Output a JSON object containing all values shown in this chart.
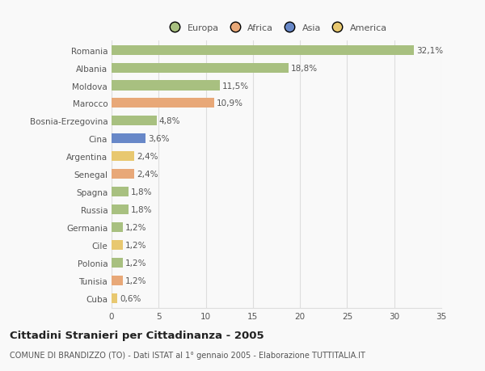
{
  "categories": [
    "Romania",
    "Albania",
    "Moldova",
    "Marocco",
    "Bosnia-Erzegovina",
    "Cina",
    "Argentina",
    "Senegal",
    "Spagna",
    "Russia",
    "Germania",
    "Cile",
    "Polonia",
    "Tunisia",
    "Cuba"
  ],
  "values": [
    32.1,
    18.8,
    11.5,
    10.9,
    4.8,
    3.6,
    2.4,
    2.4,
    1.8,
    1.8,
    1.2,
    1.2,
    1.2,
    1.2,
    0.6
  ],
  "labels": [
    "32,1%",
    "18,8%",
    "11,5%",
    "10,9%",
    "4,8%",
    "3,6%",
    "2,4%",
    "2,4%",
    "1,8%",
    "1,8%",
    "1,2%",
    "1,2%",
    "1,2%",
    "1,2%",
    "0,6%"
  ],
  "colors": [
    "#a8c080",
    "#a8c080",
    "#a8c080",
    "#e8a878",
    "#a8c080",
    "#6888c8",
    "#e8c870",
    "#e8a878",
    "#a8c080",
    "#a8c080",
    "#a8c080",
    "#e8c870",
    "#a8c080",
    "#e8a878",
    "#e8c870"
  ],
  "legend": {
    "Europa": "#a8c080",
    "Africa": "#e8a878",
    "Asia": "#6888c8",
    "America": "#e8c870"
  },
  "xlim": [
    0,
    35
  ],
  "xticks": [
    0,
    5,
    10,
    15,
    20,
    25,
    30,
    35
  ],
  "title": "Cittadini Stranieri per Cittadinanza - 2005",
  "subtitle": "COMUNE DI BRANDIZZO (TO) - Dati ISTAT al 1° gennaio 2005 - Elaborazione TUTTITALIA.IT",
  "bar_height": 0.55,
  "background_color": "#f9f9f9",
  "grid_color": "#dddddd",
  "text_color": "#555555",
  "label_fontsize": 7.5,
  "tick_fontsize": 7.5,
  "legend_fontsize": 8.0,
  "title_fontsize": 9.5,
  "subtitle_fontsize": 7.0
}
